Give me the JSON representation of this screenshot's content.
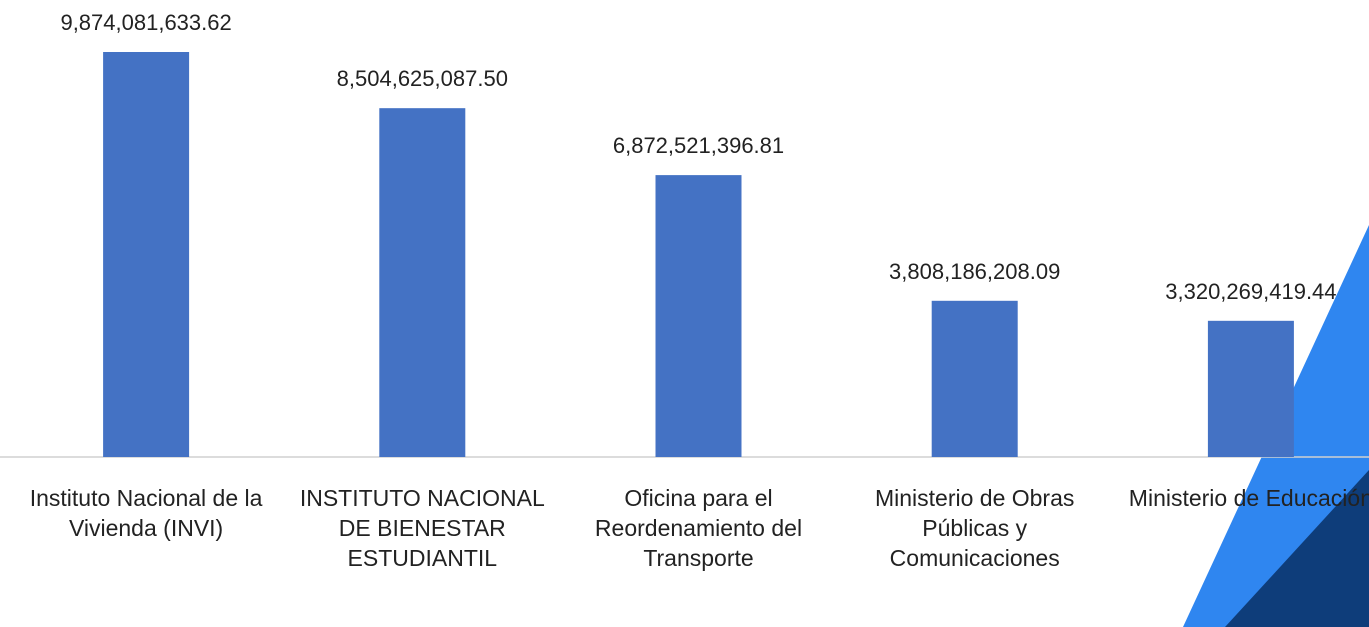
{
  "chart_data": {
    "type": "bar",
    "categories": [
      "Instituto Nacional de la Vivienda (INVI)",
      "INSTITUTO NACIONAL DE BIENESTAR ESTUDIANTIL",
      "Oficina para el Reordenamiento del Transporte",
      "Ministerio de Obras Públicas y Comunicaciones",
      "Ministerio de Educación"
    ],
    "values": [
      9874081633.62,
      8504625087.5,
      6872521396.81,
      3808186208.09,
      3320269419.44
    ],
    "value_labels": [
      "9,874,081,633.62",
      "8,504,625,087.50",
      "6,872,521,396.81",
      "3,808,186,208.09",
      "3,320,269,419.44"
    ],
    "color": "#4472c4"
  }
}
